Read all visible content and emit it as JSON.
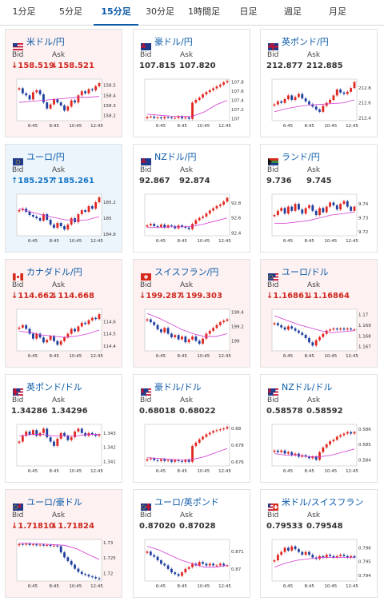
{
  "tabs": [
    {
      "label": "1分足"
    },
    {
      "label": "5分足"
    },
    {
      "label": "15分足",
      "active": true
    },
    {
      "label": "30分足"
    },
    {
      "label": "1時間足"
    },
    {
      "label": "日足"
    },
    {
      "label": "週足"
    },
    {
      "label": "月足"
    }
  ],
  "bid_label": "Bid",
  "ask_label": "Ask",
  "x_ticks": [
    "6:45",
    "8:45",
    "10:45",
    "12:45"
  ],
  "colors": {
    "up_candle": "#e0261f",
    "down_candle": "#1f3f9e",
    "ma_line": "#d43bd4",
    "price_down": "#d0271f",
    "price_up": "#1777c8",
    "link": "#0a5aa8"
  },
  "cards": [
    {
      "pair": "米ドル/円",
      "flag": "us-flag",
      "state": "down",
      "bid": "↓158.519",
      "ask": "↓158.521",
      "chart_data": {
        "type": "candlestick",
        "x": [
          "6:45",
          "8:45",
          "10:45",
          "12:45"
        ],
        "y_ticks": [
          "158.5",
          "158.4",
          "158.3",
          "158.2"
        ],
        "ylim": [
          158.15,
          158.56
        ],
        "closes": [
          158.47,
          158.42,
          158.4,
          158.36,
          158.43,
          158.45,
          158.41,
          158.33,
          158.27,
          158.31,
          158.36,
          158.33,
          158.3,
          158.25,
          158.29,
          158.35,
          158.33,
          158.4,
          158.44,
          158.42,
          158.46,
          158.45,
          158.49,
          158.52
        ],
        "ma": [
          158.33,
          158.34,
          158.35,
          158.36,
          158.37,
          158.38,
          158.38,
          158.39
        ]
      }
    },
    {
      "pair": "豪ドル/円",
      "flag": "au-flag",
      "state": "neutral",
      "bid": "107.815",
      "ask": "107.820",
      "chart_data": {
        "type": "candlestick",
        "x": [
          "6:45",
          "8:45",
          "10:45",
          "12:45"
        ],
        "y_ticks": [
          "107.8",
          "107.6",
          "107.4",
          "107.2",
          "107"
        ],
        "ylim": [
          106.96,
          107.86
        ],
        "closes": [
          107.04,
          107.05,
          107.02,
          107.03,
          107.01,
          107.04,
          107.03,
          107.02,
          107.02,
          107.05,
          107.01,
          107.03,
          107.0,
          107.35,
          107.41,
          107.46,
          107.53,
          107.58,
          107.62,
          107.66,
          107.7,
          107.74,
          107.79,
          107.82
        ],
        "ma": [
          107.1,
          107.08,
          107.06,
          107.05,
          107.06,
          107.15,
          107.3,
          107.4
        ]
      }
    },
    {
      "pair": "英ポンド/円",
      "flag": "gb-flag",
      "state": "neutral",
      "bid": "212.877",
      "ask": "212.885",
      "chart_data": {
        "type": "candlestick",
        "x": [
          "6:45",
          "8:45",
          "10:45",
          "12:45"
        ],
        "y_ticks": [
          "212.8",
          "212.6",
          "212.4"
        ],
        "ylim": [
          212.36,
          212.92
        ],
        "closes": [
          212.58,
          212.62,
          212.6,
          212.65,
          212.7,
          212.64,
          212.68,
          212.72,
          212.66,
          212.62,
          212.58,
          212.55,
          212.51,
          212.48,
          212.56,
          212.6,
          212.64,
          212.7,
          212.78,
          212.74,
          212.72,
          212.75,
          212.8,
          212.88
        ],
        "ma": [
          212.48,
          212.52,
          212.55,
          212.57,
          212.58,
          212.59,
          212.6,
          212.64
        ]
      }
    },
    {
      "pair": "ユーロ/円",
      "flag": "eu-flag",
      "state": "up",
      "bid": "↑185.257",
      "ask": "↑185.261",
      "chart_data": {
        "type": "candlestick",
        "x": [
          "6:45",
          "8:45",
          "10:45",
          "12:45"
        ],
        "y_ticks": [
          "185.2",
          "185",
          "184.8"
        ],
        "ylim": [
          184.78,
          185.3
        ],
        "closes": [
          185.1,
          185.12,
          185.08,
          185.04,
          185.02,
          185.0,
          184.97,
          185.05,
          184.98,
          184.92,
          184.88,
          184.94,
          184.9,
          184.86,
          184.92,
          185.0,
          184.95,
          185.05,
          185.1,
          185.08,
          185.15,
          185.12,
          185.2,
          185.26
        ],
        "ma": [
          185.12,
          185.08,
          185.04,
          185.01,
          184.98,
          184.97,
          184.98,
          185.02
        ]
      }
    },
    {
      "pair": "NZドル/円",
      "flag": "nz-flag",
      "state": "neutral",
      "bid": "92.867",
      "ask": "92.874",
      "chart_data": {
        "type": "candlestick",
        "x": [
          "6:45",
          "8:45",
          "10:45",
          "12:45"
        ],
        "y_ticks": [
          "92.8",
          "92.6",
          "92.4"
        ],
        "ylim": [
          92.36,
          92.92
        ],
        "closes": [
          92.5,
          92.52,
          92.49,
          92.48,
          92.51,
          92.47,
          92.5,
          92.49,
          92.46,
          92.5,
          92.48,
          92.47,
          92.45,
          92.52,
          92.57,
          92.6,
          92.62,
          92.66,
          92.7,
          92.73,
          92.76,
          92.78,
          92.82,
          92.87
        ],
        "ma": [
          92.47,
          92.47,
          92.48,
          92.48,
          92.49,
          92.52,
          92.56,
          92.6
        ]
      }
    },
    {
      "pair": "ランド/円",
      "flag": "za-flag",
      "state": "neutral",
      "bid": "9.736",
      "ask": "9.745",
      "chart_data": {
        "type": "candlestick",
        "x": [
          "6:45",
          "8:45",
          "10:45",
          "12:45"
        ],
        "y_ticks": [
          "9.74",
          "9.73",
          "9.72"
        ],
        "ylim": [
          9.717,
          9.747
        ],
        "closes": [
          9.732,
          9.735,
          9.737,
          9.733,
          9.738,
          9.735,
          9.74,
          9.736,
          9.733,
          9.737,
          9.739,
          9.735,
          9.732,
          9.737,
          9.734,
          9.738,
          9.741,
          9.739,
          9.736,
          9.74,
          9.742,
          9.738,
          9.735,
          9.738
        ],
        "ma": [
          9.726,
          9.726,
          9.727,
          9.728,
          9.73,
          9.732,
          9.733,
          9.734
        ]
      }
    },
    {
      "pair": "カナダドル/円",
      "flag": "ca-flag",
      "state": "down",
      "bid": "↓114.662",
      "ask": "↓114.668",
      "chart_data": {
        "type": "candlestick",
        "x": [
          "6:45",
          "8:45",
          "10:45",
          "12:45"
        ],
        "y_ticks": [
          "114.6",
          "114.5",
          "114.4"
        ],
        "ylim": [
          114.36,
          114.7
        ],
        "closes": [
          114.55,
          114.57,
          114.54,
          114.5,
          114.46,
          114.5,
          114.47,
          114.43,
          114.45,
          114.48,
          114.44,
          114.41,
          114.44,
          114.47,
          114.5,
          114.54,
          114.52,
          114.56,
          114.59,
          114.58,
          114.61,
          114.63,
          114.62,
          114.66
        ],
        "ma": [
          114.52,
          114.51,
          114.49,
          114.48,
          114.47,
          114.48,
          114.5,
          114.53
        ]
      }
    },
    {
      "pair": "スイスフラン/円",
      "flag": "ch-flag",
      "state": "down",
      "bid": "↓199.287",
      "ask": "↓199.303",
      "chart_data": {
        "type": "candlestick",
        "x": [
          "6:45",
          "8:45",
          "10:45",
          "12:45"
        ],
        "y_ticks": [
          "199.4",
          "199.2",
          "199"
        ],
        "ylim": [
          198.86,
          199.44
        ],
        "closes": [
          199.3,
          199.26,
          199.22,
          199.16,
          199.12,
          199.18,
          199.1,
          199.05,
          199.08,
          199.02,
          199.06,
          198.98,
          199.02,
          199.06,
          199.0,
          198.96,
          199.03,
          199.1,
          199.14,
          199.18,
          199.22,
          199.26,
          199.28,
          199.3
        ],
        "ma": [
          199.38,
          199.32,
          199.24,
          199.16,
          199.1,
          199.06,
          199.06,
          199.1
        ]
      }
    },
    {
      "pair": "ユーロ/ドル",
      "flag": "eu-us-flag",
      "state": "down",
      "bid": "↓1.16861",
      "ask": "↓1.16864",
      "chart_data": {
        "type": "candlestick",
        "x": [
          "6:45",
          "8:45",
          "10:45",
          "12:45"
        ],
        "y_ticks": [
          "1.17",
          "1.169",
          "1.168",
          "1.167"
        ],
        "ylim": [
          1.1666,
          1.1705
        ],
        "closes": [
          1.1692,
          1.169,
          1.1688,
          1.1686,
          1.1689,
          1.1687,
          1.1685,
          1.1683,
          1.1681,
          1.1678,
          1.1674,
          1.1671,
          1.1676,
          1.1679,
          1.1682,
          1.1685,
          1.1686,
          1.1687,
          1.1686,
          1.1687,
          1.1686,
          1.1687,
          1.1686,
          1.1686
        ],
        "ma": [
          1.1699,
          1.1695,
          1.1691,
          1.1688,
          1.1685,
          1.1683,
          1.1684,
          1.1685
        ]
      }
    },
    {
      "pair": "英ポンド/ドル",
      "flag": "gb-us-flag",
      "state": "neutral",
      "bid": "1.34286",
      "ask": "1.34296",
      "chart_data": {
        "type": "candlestick",
        "x": [
          "6:45",
          "8:45",
          "10:45",
          "12:45"
        ],
        "y_ticks": [
          "1.343",
          "1.342",
          "1.341"
        ],
        "ylim": [
          1.3407,
          1.3436
        ],
        "closes": [
          1.3424,
          1.3428,
          1.3431,
          1.3429,
          1.3432,
          1.3428,
          1.343,
          1.3433,
          1.3427,
          1.3424,
          1.3421,
          1.3426,
          1.343,
          1.3428,
          1.3425,
          1.3427,
          1.3431,
          1.3433,
          1.343,
          1.3428,
          1.343,
          1.3429,
          1.3428,
          1.3429
        ],
        "ma": [
          1.3428,
          1.3429,
          1.3429,
          1.3428,
          1.3428,
          1.3428,
          1.3429,
          1.3429
        ]
      }
    },
    {
      "pair": "豪ドル/ドル",
      "flag": "au-us-flag",
      "state": "neutral",
      "bid": "0.68018",
      "ask": "0.68022",
      "chart_data": {
        "type": "candlestick",
        "x": [
          "6:45",
          "8:45",
          "10:45",
          "12:45"
        ],
        "y_ticks": [
          "0.68",
          "0.678",
          "0.676"
        ],
        "ylim": [
          0.6755,
          0.6805
        ],
        "closes": [
          0.6763,
          0.6764,
          0.6762,
          0.6761,
          0.6763,
          0.6761,
          0.6762,
          0.676,
          0.6762,
          0.6761,
          0.676,
          0.6762,
          0.676,
          0.6779,
          0.6783,
          0.6787,
          0.679,
          0.6793,
          0.6795,
          0.6797,
          0.6798,
          0.6799,
          0.68,
          0.6802
        ],
        "ma": [
          0.6765,
          0.6764,
          0.6763,
          0.6762,
          0.6763,
          0.6766,
          0.6771,
          0.6776
        ]
      }
    },
    {
      "pair": "NZドル/ドル",
      "flag": "nz-us-flag",
      "state": "neutral",
      "bid": "0.58578",
      "ask": "0.58592",
      "chart_data": {
        "type": "candlestick",
        "x": [
          "6:45",
          "8:45",
          "10:45",
          "12:45"
        ],
        "y_ticks": [
          "0.586",
          "0.585",
          "0.584"
        ],
        "ylim": [
          0.5836,
          0.5863
        ],
        "closes": [
          0.5846,
          0.5845,
          0.5846,
          0.5844,
          0.5845,
          0.5843,
          0.5844,
          0.5842,
          0.5843,
          0.5842,
          0.5841,
          0.5842,
          0.584,
          0.5845,
          0.5848,
          0.585,
          0.5852,
          0.5853,
          0.5855,
          0.5856,
          0.5857,
          0.5858,
          0.5857,
          0.5858
        ],
        "ma": [
          0.5844,
          0.5843,
          0.5843,
          0.5842,
          0.5842,
          0.5843,
          0.5845,
          0.5847
        ]
      }
    },
    {
      "pair": "ユーロ/豪ドル",
      "flag": "eu-au-flag",
      "state": "down",
      "bid": "↓1.71810",
      "ask": "↓1.71824",
      "chart_data": {
        "type": "candlestick",
        "x": [
          "6:45",
          "8:45",
          "10:45",
          "12:45"
        ],
        "y_ticks": [
          "1.73",
          "1.725",
          "1.72"
        ],
        "ylim": [
          1.7175,
          1.731
        ],
        "closes": [
          1.7295,
          1.7293,
          1.7296,
          1.7292,
          1.7294,
          1.7291,
          1.7293,
          1.729,
          1.7292,
          1.7289,
          1.729,
          1.7288,
          1.7268,
          1.7252,
          1.724,
          1.7228,
          1.7215,
          1.7205,
          1.7198,
          1.7195,
          1.719,
          1.7188,
          1.7184,
          1.7181
        ],
        "ma": [
          1.7298,
          1.7297,
          1.7295,
          1.7293,
          1.7291,
          1.728,
          1.7262,
          1.7245
        ]
      }
    },
    {
      "pair": "ユーロ/英ポンド",
      "flag": "eu-gb-flag",
      "state": "neutral",
      "bid": "0.87020",
      "ask": "0.87028",
      "chart_data": {
        "type": "candlestick",
        "x": [
          "6:45",
          "8:45",
          "10:45",
          "12:45"
        ],
        "y_ticks": [
          "0.871",
          "0.87"
        ],
        "ylim": [
          0.8693,
          0.8717
        ],
        "closes": [
          0.871,
          0.8708,
          0.8707,
          0.8705,
          0.8703,
          0.8702,
          0.87,
          0.8698,
          0.8697,
          0.8696,
          0.8698,
          0.87,
          0.8701,
          0.8703,
          0.8702,
          0.8704,
          0.8703,
          0.8702,
          0.8703,
          0.8702,
          0.8702,
          0.8703,
          0.8702,
          0.8702
        ],
        "ma": [
          0.8713,
          0.8711,
          0.8708,
          0.8705,
          0.8703,
          0.8701,
          0.8701,
          0.8702
        ]
      }
    },
    {
      "pair": "米ドル/スイスフラン",
      "flag": "us-ch-flag",
      "state": "neutral",
      "bid": "0.79533",
      "ask": "0.79548",
      "chart_data": {
        "type": "candlestick",
        "x": [
          "6:45",
          "8:45",
          "10:45",
          "12:45"
        ],
        "y_ticks": [
          "0.796",
          "0.795",
          "0.794"
        ],
        "ylim": [
          0.7936,
          0.7966
        ],
        "closes": [
          0.7951,
          0.7955,
          0.7957,
          0.796,
          0.7958,
          0.7961,
          0.7959,
          0.7957,
          0.7955,
          0.7957,
          0.7955,
          0.7953,
          0.7952,
          0.7954,
          0.7953,
          0.7955,
          0.7954,
          0.7953,
          0.7954,
          0.7955,
          0.7954,
          0.7953,
          0.7954,
          0.7953
        ],
        "ma": [
          0.7946,
          0.7949,
          0.7951,
          0.7952,
          0.7953,
          0.7953,
          0.7953,
          0.7953
        ]
      }
    }
  ]
}
